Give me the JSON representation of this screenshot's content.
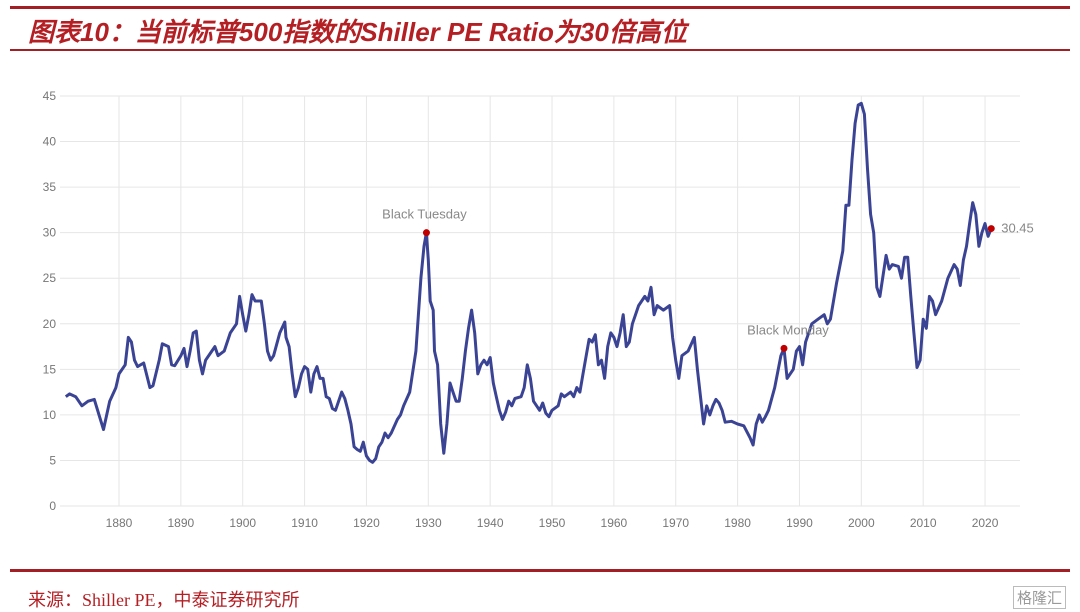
{
  "header": {
    "title": "图表10：当前标普500指数的Shiller PE Ratio为30倍高位"
  },
  "footer": {
    "source": "来源：Shiller PE，中泰证券研究所",
    "watermark": "格隆汇"
  },
  "colors": {
    "line": "#3b4494",
    "marker": "#c00000",
    "accent": "#b41f24"
  },
  "chart_data": {
    "type": "line",
    "title": "",
    "xlabel": "",
    "ylabel": "",
    "xlim": [
      1871,
      2021.5
    ],
    "ylim": [
      0,
      45
    ],
    "yticks": [
      0,
      5,
      10,
      15,
      20,
      25,
      30,
      35,
      40,
      45
    ],
    "xticks": [
      1880,
      1890,
      1900,
      1910,
      1920,
      1930,
      1940,
      1950,
      1960,
      1970,
      1980,
      1990,
      2000,
      2010,
      2020
    ],
    "grid": true,
    "series": [
      {
        "name": "Shiller PE Ratio",
        "points": [
          [
            1871.4,
            12
          ],
          [
            1872,
            12.3
          ],
          [
            1873,
            12
          ],
          [
            1874,
            11
          ],
          [
            1875,
            11.5
          ],
          [
            1876,
            11.7
          ],
          [
            1877,
            9.5
          ],
          [
            1877.5,
            8.4
          ],
          [
            1878.5,
            11.5
          ],
          [
            1879.5,
            13
          ],
          [
            1880,
            14.5
          ],
          [
            1881,
            15.5
          ],
          [
            1881.5,
            18.5
          ],
          [
            1882,
            18
          ],
          [
            1882.5,
            16
          ],
          [
            1883,
            15.3
          ],
          [
            1884,
            15.7
          ],
          [
            1885,
            13
          ],
          [
            1885.5,
            13.2
          ],
          [
            1886.5,
            16
          ],
          [
            1887,
            17.8
          ],
          [
            1888,
            17.5
          ],
          [
            1888.5,
            15.5
          ],
          [
            1889,
            15.4
          ],
          [
            1890,
            16.5
          ],
          [
            1890.5,
            17.3
          ],
          [
            1891,
            15.3
          ],
          [
            1891.5,
            17
          ],
          [
            1892,
            19
          ],
          [
            1892.5,
            19.2
          ],
          [
            1893,
            16
          ],
          [
            1893.5,
            14.5
          ],
          [
            1894,
            16
          ],
          [
            1895,
            17
          ],
          [
            1895.5,
            17.5
          ],
          [
            1896,
            16.5
          ],
          [
            1897,
            17
          ],
          [
            1898,
            19
          ],
          [
            1899,
            20
          ],
          [
            1899.5,
            23
          ],
          [
            1900,
            21
          ],
          [
            1900.5,
            19.2
          ],
          [
            1901,
            21
          ],
          [
            1901.5,
            23.2
          ],
          [
            1902,
            22.5
          ],
          [
            1903,
            22.5
          ],
          [
            1903.5,
            20
          ],
          [
            1904,
            17
          ],
          [
            1904.5,
            16
          ],
          [
            1905,
            16.5
          ],
          [
            1906,
            19
          ],
          [
            1906.8,
            20.2
          ],
          [
            1907,
            18.5
          ],
          [
            1907.5,
            17.5
          ],
          [
            1908,
            14.5
          ],
          [
            1908.5,
            12
          ],
          [
            1909,
            13
          ],
          [
            1909.5,
            14.5
          ],
          [
            1910,
            15.3
          ],
          [
            1910.5,
            15
          ],
          [
            1911,
            12.5
          ],
          [
            1911.5,
            14.5
          ],
          [
            1912,
            15.3
          ],
          [
            1912.5,
            14
          ],
          [
            1913,
            14
          ],
          [
            1913.5,
            12
          ],
          [
            1914,
            11.8
          ],
          [
            1914.5,
            10.7
          ],
          [
            1915,
            10.5
          ],
          [
            1916,
            12.5
          ],
          [
            1916.5,
            11.8
          ],
          [
            1917,
            10.5
          ],
          [
            1917.5,
            9
          ],
          [
            1918,
            6.5
          ],
          [
            1918.5,
            6.2
          ],
          [
            1919,
            6
          ],
          [
            1919.5,
            7
          ],
          [
            1920,
            5.5
          ],
          [
            1920.5,
            5
          ],
          [
            1921,
            4.8
          ],
          [
            1921.5,
            5.2
          ],
          [
            1922,
            6.5
          ],
          [
            1922.5,
            7
          ],
          [
            1923,
            8
          ],
          [
            1923.5,
            7.5
          ],
          [
            1924,
            8
          ],
          [
            1925,
            9.5
          ],
          [
            1925.5,
            10
          ],
          [
            1926,
            11
          ],
          [
            1927,
            12.5
          ],
          [
            1928,
            17
          ],
          [
            1928.8,
            25
          ],
          [
            1929.3,
            28.5
          ],
          [
            1929.7,
            30
          ],
          [
            1930,
            27
          ],
          [
            1930.3,
            22.5
          ],
          [
            1930.8,
            21.5
          ],
          [
            1931,
            17
          ],
          [
            1931.5,
            15.5
          ],
          [
            1932,
            9
          ],
          [
            1932.5,
            5.8
          ],
          [
            1933,
            9
          ],
          [
            1933.5,
            13.5
          ],
          [
            1934,
            12.5
          ],
          [
            1934.5,
            11.5
          ],
          [
            1935,
            11.5
          ],
          [
            1935.5,
            14
          ],
          [
            1936,
            17
          ],
          [
            1936.5,
            19.5
          ],
          [
            1937,
            21.5
          ],
          [
            1937.5,
            19
          ],
          [
            1938,
            14.5
          ],
          [
            1938.5,
            15.5
          ],
          [
            1939,
            16
          ],
          [
            1939.5,
            15.5
          ],
          [
            1940,
            16.3
          ],
          [
            1940.5,
            13.5
          ],
          [
            1941,
            12
          ],
          [
            1941.5,
            10.5
          ],
          [
            1942,
            9.5
          ],
          [
            1942.5,
            10.3
          ],
          [
            1943,
            11.5
          ],
          [
            1943.5,
            11
          ],
          [
            1944,
            11.8
          ],
          [
            1945,
            12
          ],
          [
            1945.5,
            13
          ],
          [
            1946,
            15.5
          ],
          [
            1946.5,
            14
          ],
          [
            1947,
            11.5
          ],
          [
            1947.5,
            11
          ],
          [
            1948,
            10.5
          ],
          [
            1948.5,
            11.3
          ],
          [
            1949,
            10.2
          ],
          [
            1949.5,
            9.8
          ],
          [
            1950,
            10.5
          ],
          [
            1951,
            11
          ],
          [
            1951.5,
            12.3
          ],
          [
            1952,
            12
          ],
          [
            1953,
            12.5
          ],
          [
            1953.5,
            12
          ],
          [
            1954,
            13
          ],
          [
            1954.5,
            12.5
          ],
          [
            1955,
            14.5
          ],
          [
            1956,
            18.3
          ],
          [
            1956.5,
            18
          ],
          [
            1957,
            18.8
          ],
          [
            1957.5,
            15.5
          ],
          [
            1958,
            16
          ],
          [
            1958.5,
            14
          ],
          [
            1959,
            17.5
          ],
          [
            1959.5,
            19
          ],
          [
            1960,
            18.5
          ],
          [
            1960.5,
            17.5
          ],
          [
            1961,
            19
          ],
          [
            1961.5,
            21
          ],
          [
            1962,
            17.5
          ],
          [
            1962.5,
            18
          ],
          [
            1963,
            20
          ],
          [
            1964,
            22
          ],
          [
            1965,
            23
          ],
          [
            1965.5,
            22.5
          ],
          [
            1966,
            24
          ],
          [
            1966.5,
            21
          ],
          [
            1967,
            22
          ],
          [
            1968,
            21.5
          ],
          [
            1969,
            22
          ],
          [
            1969.5,
            18.5
          ],
          [
            1970,
            16
          ],
          [
            1970.5,
            14
          ],
          [
            1971,
            16.5
          ],
          [
            1972,
            17
          ],
          [
            1973,
            18.5
          ],
          [
            1973.5,
            15
          ],
          [
            1974,
            12
          ],
          [
            1974.5,
            9
          ],
          [
            1975,
            11
          ],
          [
            1975.5,
            10
          ],
          [
            1976,
            11
          ],
          [
            1976.5,
            11.7
          ],
          [
            1977,
            11.3
          ],
          [
            1977.5,
            10.5
          ],
          [
            1978,
            9.2
          ],
          [
            1979,
            9.3
          ],
          [
            1980,
            9
          ],
          [
            1981,
            8.8
          ],
          [
            1982,
            7.5
          ],
          [
            1982.5,
            6.7
          ],
          [
            1983,
            9
          ],
          [
            1983.5,
            10
          ],
          [
            1984,
            9.2
          ],
          [
            1984.5,
            9.8
          ],
          [
            1985,
            10.5
          ],
          [
            1986,
            13
          ],
          [
            1987,
            16.5
          ],
          [
            1987.5,
            17.3
          ],
          [
            1988,
            14
          ],
          [
            1989,
            15
          ],
          [
            1989.5,
            17
          ],
          [
            1990,
            17.5
          ],
          [
            1990.5,
            15.5
          ],
          [
            1991,
            18
          ],
          [
            1992,
            20
          ],
          [
            1993,
            20.5
          ],
          [
            1994,
            21
          ],
          [
            1994.5,
            20
          ],
          [
            1995,
            20.5
          ],
          [
            1996,
            24.5
          ],
          [
            1997,
            28
          ],
          [
            1997.5,
            33
          ],
          [
            1998,
            33
          ],
          [
            1998.5,
            38
          ],
          [
            1999,
            42
          ],
          [
            1999.5,
            44
          ],
          [
            2000,
            44.2
          ],
          [
            2000.5,
            43
          ],
          [
            2001,
            37
          ],
          [
            2001.5,
            32
          ],
          [
            2002,
            30
          ],
          [
            2002.5,
            24
          ],
          [
            2003,
            23
          ],
          [
            2004,
            27.5
          ],
          [
            2004.5,
            26
          ],
          [
            2005,
            26.5
          ],
          [
            2006,
            26.3
          ],
          [
            2006.5,
            25
          ],
          [
            2007,
            27.3
          ],
          [
            2007.5,
            27.3
          ],
          [
            2008,
            23
          ],
          [
            2008.5,
            19
          ],
          [
            2009,
            15.2
          ],
          [
            2009.5,
            16
          ],
          [
            2010,
            20.5
          ],
          [
            2010.5,
            19.5
          ],
          [
            2011,
            23
          ],
          [
            2011.5,
            22.5
          ],
          [
            2012,
            21
          ],
          [
            2013,
            22.5
          ],
          [
            2014,
            25
          ],
          [
            2015,
            26.5
          ],
          [
            2015.5,
            26
          ],
          [
            2016,
            24.2
          ],
          [
            2016.5,
            27
          ],
          [
            2017,
            28.5
          ],
          [
            2017.5,
            31
          ],
          [
            2018,
            33.3
          ],
          [
            2018.5,
            32
          ],
          [
            2019,
            28.5
          ],
          [
            2019.5,
            30
          ],
          [
            2020,
            31
          ],
          [
            2020.5,
            29.6
          ],
          [
            2021,
            30.45
          ]
        ]
      }
    ],
    "annotations": [
      {
        "label": "Black Tuesday",
        "x": 1929.7,
        "y": 30
      },
      {
        "label": "Black Monday",
        "x": 1987.5,
        "y": 17.3
      },
      {
        "label": "30.45",
        "x": 2021,
        "y": 30.45
      }
    ]
  }
}
